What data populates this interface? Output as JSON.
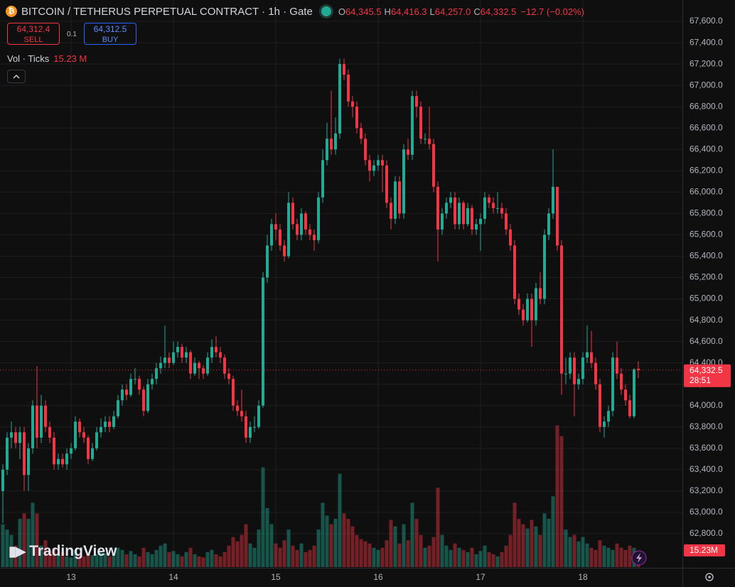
{
  "header": {
    "title": "BITCOIN / TETHERUS PERPETUAL CONTRACT · 1h · Gate",
    "ohlc": [
      {
        "key": "O",
        "value": "64,345.5"
      },
      {
        "key": "H",
        "value": "64,416.3"
      },
      {
        "key": "L",
        "value": "64,257.0"
      },
      {
        "key": "C",
        "value": "64,332.5"
      }
    ],
    "change": "−12.7 (−0.02%)"
  },
  "trade": {
    "sell_price": "64,312.4",
    "sell": "SELL",
    "quantity": "0.1",
    "buy_price": "64,312.5",
    "buy": "BUY"
  },
  "volume_legend": {
    "label": "Vol · Ticks",
    "value": "15.23 M"
  },
  "logo": "TradingView",
  "chart_data": {
    "type": "candlestick",
    "categories": [
      null,
      null,
      null,
      null,
      null,
      null,
      null,
      null,
      null,
      null,
      null,
      null,
      null,
      null,
      null,
      null,
      "13",
      null,
      null,
      null,
      null,
      null,
      null,
      null,
      null,
      null,
      null,
      null,
      null,
      null,
      null,
      null,
      null,
      null,
      null,
      null,
      null,
      null,
      null,
      null,
      "14",
      null,
      null,
      null,
      null,
      null,
      null,
      null,
      null,
      null,
      null,
      null,
      null,
      null,
      null,
      null,
      null,
      null,
      null,
      null,
      null,
      null,
      null,
      null,
      "15",
      null,
      null,
      null,
      null,
      null,
      null,
      null,
      null,
      null,
      null,
      null,
      null,
      null,
      null,
      null,
      null,
      null,
      null,
      null,
      null,
      null,
      null,
      null,
      "16",
      null,
      null,
      null,
      null,
      null,
      null,
      null,
      null,
      null,
      null,
      null,
      null,
      null,
      null,
      null,
      null,
      null,
      null,
      null,
      null,
      null,
      null,
      null,
      "17",
      null,
      null,
      null,
      null,
      null,
      null,
      null,
      null,
      null,
      null,
      null,
      null,
      null,
      null,
      null,
      null,
      null,
      null,
      null,
      null,
      null,
      null,
      null,
      "18",
      null,
      null,
      null,
      null,
      null,
      null,
      null,
      null,
      null,
      null,
      null,
      null,
      null
    ],
    "candles": [
      [
        63200,
        63450,
        62900,
        63400
      ],
      [
        63400,
        63750,
        63350,
        63700
      ],
      [
        63700,
        63850,
        63600,
        63750
      ],
      [
        63750,
        63800,
        63600,
        63650
      ],
      [
        63650,
        63800,
        63500,
        63750
      ],
      [
        63750,
        63800,
        63200,
        63350
      ],
      [
        63350,
        63650,
        63200,
        63600
      ],
      [
        63600,
        64050,
        63550,
        64000
      ],
      [
        64000,
        64370,
        63600,
        63700
      ],
      [
        63700,
        64100,
        63650,
        64000
      ],
      [
        64000,
        64050,
        63750,
        63800
      ],
      [
        63800,
        63850,
        63650,
        63700
      ],
      [
        63700,
        63750,
        63400,
        63450
      ],
      [
        63450,
        63550,
        63400,
        63500
      ],
      [
        63500,
        63550,
        63420,
        63450
      ],
      [
        63450,
        63600,
        63400,
        63550
      ],
      [
        63550,
        63650,
        63500,
        63600
      ],
      [
        63600,
        63900,
        63580,
        63850
      ],
      [
        63850,
        63880,
        63700,
        63750
      ],
      [
        63750,
        63800,
        63650,
        63700
      ],
      [
        63700,
        63720,
        63450,
        63500
      ],
      [
        63500,
        63650,
        63480,
        63600
      ],
      [
        63600,
        63800,
        63580,
        63750
      ],
      [
        63750,
        63880,
        63700,
        63800
      ],
      [
        63800,
        63900,
        63750,
        63850
      ],
      [
        63850,
        63900,
        63750,
        63800
      ],
      [
        63800,
        63950,
        63780,
        63900
      ],
      [
        63900,
        64100,
        63880,
        64050
      ],
      [
        64050,
        64200,
        64000,
        64150
      ],
      [
        64150,
        64200,
        64050,
        64100
      ],
      [
        64100,
        64300,
        64080,
        64250
      ],
      [
        64250,
        64350,
        64200,
        64250
      ],
      [
        64250,
        64280,
        64100,
        64150
      ],
      [
        64150,
        64180,
        63900,
        63950
      ],
      [
        63950,
        64250,
        63930,
        64200
      ],
      [
        64200,
        64300,
        64150,
        64250
      ],
      [
        64250,
        64400,
        64200,
        64350
      ],
      [
        64350,
        64460,
        64300,
        64400
      ],
      [
        64400,
        64750,
        64350,
        64450
      ],
      [
        64450,
        64500,
        64350,
        64400
      ],
      [
        64400,
        64600,
        64380,
        64500
      ],
      [
        64500,
        64600,
        64450,
        64550
      ],
      [
        64550,
        64580,
        64400,
        64450
      ],
      [
        64450,
        64550,
        64400,
        64500
      ],
      [
        64500,
        64520,
        64250,
        64300
      ],
      [
        64300,
        64450,
        64280,
        64400
      ],
      [
        64400,
        64420,
        64250,
        64350
      ],
      [
        64350,
        64380,
        64250,
        64300
      ],
      [
        64300,
        64500,
        64280,
        64450
      ],
      [
        64450,
        64620,
        64400,
        64550
      ],
      [
        64550,
        64650,
        64450,
        64500
      ],
      [
        64500,
        64550,
        64400,
        64450
      ],
      [
        64450,
        64480,
        64250,
        64300
      ],
      [
        64300,
        64350,
        64200,
        64250
      ],
      [
        64250,
        64280,
        63950,
        64000
      ],
      [
        64000,
        64050,
        63900,
        63950
      ],
      [
        63950,
        64150,
        63850,
        63900
      ],
      [
        63900,
        63950,
        63650,
        63700
      ],
      [
        63700,
        63850,
        63650,
        63800
      ],
      [
        63800,
        63900,
        63750,
        63800
      ],
      [
        63800,
        64050,
        63780,
        64000
      ],
      [
        64000,
        65250,
        63980,
        65200
      ],
      [
        65200,
        65600,
        65150,
        65500
      ],
      [
        65500,
        65750,
        65450,
        65700
      ],
      [
        65700,
        65800,
        65550,
        65650
      ],
      [
        65650,
        65700,
        65450,
        65500
      ],
      [
        65500,
        65550,
        65350,
        65400
      ],
      [
        65400,
        66000,
        65380,
        65900
      ],
      [
        65900,
        65950,
        65650,
        65700
      ],
      [
        65700,
        65750,
        65550,
        65600
      ],
      [
        65600,
        65850,
        65550,
        65800
      ],
      [
        65800,
        65820,
        65600,
        65650
      ],
      [
        65650,
        65700,
        65550,
        65600
      ],
      [
        65600,
        65650,
        65450,
        65550
      ],
      [
        65550,
        66000,
        65520,
        65950
      ],
      [
        65950,
        66400,
        65900,
        66300
      ],
      [
        66300,
        66650,
        66250,
        66500
      ],
      [
        66500,
        66950,
        66350,
        66400
      ],
      [
        66400,
        66700,
        66350,
        66550
      ],
      [
        66550,
        67250,
        66500,
        67200
      ],
      [
        67200,
        67250,
        67050,
        67100
      ],
      [
        67100,
        67150,
        66800,
        66850
      ],
      [
        66850,
        66900,
        66700,
        66800
      ],
      [
        66800,
        66850,
        66550,
        66600
      ],
      [
        66600,
        66650,
        66450,
        66500
      ],
      [
        66500,
        66550,
        66250,
        66300
      ],
      [
        66300,
        66350,
        66100,
        66200
      ],
      [
        66200,
        66300,
        66150,
        66250
      ],
      [
        66250,
        66350,
        66200,
        66300
      ],
      [
        66300,
        66350,
        66000,
        66250
      ],
      [
        66250,
        66300,
        65850,
        65900
      ],
      [
        65900,
        65950,
        65650,
        65750
      ],
      [
        65750,
        66150,
        65700,
        66100
      ],
      [
        66100,
        66150,
        65750,
        65800
      ],
      [
        65800,
        66450,
        65750,
        66400
      ],
      [
        66400,
        66500,
        66300,
        66350
      ],
      [
        66350,
        66950,
        66300,
        66900
      ],
      [
        66900,
        66950,
        66700,
        66800
      ],
      [
        66800,
        66850,
        66450,
        66500
      ],
      [
        66500,
        66550,
        66450,
        66500
      ],
      [
        66500,
        66800,
        66400,
        66450
      ],
      [
        66450,
        66500,
        66000,
        66050
      ],
      [
        66050,
        66100,
        65350,
        65650
      ],
      [
        65650,
        65850,
        65600,
        65800
      ],
      [
        65800,
        65950,
        65750,
        65900
      ],
      [
        65900,
        66000,
        65850,
        65950
      ],
      [
        65950,
        66000,
        65650,
        65700
      ],
      [
        65700,
        65950,
        65650,
        65900
      ],
      [
        65900,
        65920,
        65650,
        65700
      ],
      [
        65700,
        65900,
        65680,
        65850
      ],
      [
        65850,
        65880,
        65600,
        65650
      ],
      [
        65650,
        65750,
        65600,
        65700
      ],
      [
        65700,
        65800,
        65450,
        65750
      ],
      [
        65750,
        66000,
        65700,
        65950
      ],
      [
        65950,
        65980,
        65850,
        65900
      ],
      [
        65900,
        65950,
        65800,
        65850
      ],
      [
        65850,
        66000,
        65800,
        65850
      ],
      [
        65850,
        65900,
        65750,
        65800
      ],
      [
        65800,
        65850,
        65600,
        65650
      ],
      [
        65650,
        65700,
        65450,
        65500
      ],
      [
        65500,
        65550,
        64950,
        65000
      ],
      [
        65000,
        65050,
        64850,
        64900
      ],
      [
        64900,
        64950,
        64750,
        64800
      ],
      [
        64800,
        65050,
        64780,
        65000
      ],
      [
        65000,
        65050,
        64550,
        64800
      ],
      [
        64800,
        65150,
        64750,
        65100
      ],
      [
        65100,
        65250,
        64950,
        65000
      ],
      [
        65000,
        65650,
        64950,
        65600
      ],
      [
        65600,
        65850,
        65550,
        65800
      ],
      [
        65800,
        66400,
        65750,
        66050
      ],
      [
        66050,
        66050,
        65450,
        65500
      ],
      [
        65500,
        65550,
        64100,
        64300
      ],
      [
        64300,
        64450,
        64200,
        64300
      ],
      [
        64300,
        64500,
        64250,
        64450
      ],
      [
        64450,
        64500,
        63900,
        64200
      ],
      [
        64200,
        64300,
        64150,
        64250
      ],
      [
        64250,
        64500,
        64200,
        64450
      ],
      [
        64450,
        64750,
        64400,
        64500
      ],
      [
        64500,
        64700,
        64350,
        64400
      ],
      [
        64400,
        64450,
        64150,
        64200
      ],
      [
        64200,
        64250,
        63750,
        63800
      ],
      [
        63800,
        63900,
        63700,
        63850
      ],
      [
        63850,
        64000,
        63800,
        63950
      ],
      [
        63950,
        64500,
        63900,
        64450
      ],
      [
        64450,
        64600,
        64250,
        64300
      ],
      [
        64300,
        64350,
        64100,
        64150
      ],
      [
        64150,
        64200,
        64000,
        64050
      ],
      [
        64050,
        64100,
        63880,
        63900
      ],
      [
        63900,
        64350,
        63880,
        64340
      ],
      [
        64345.5,
        64416.3,
        64257.0,
        64332.5
      ]
    ],
    "volume": [
      40,
      35,
      30,
      20,
      45,
      50,
      45,
      60,
      50,
      20,
      25,
      15,
      18,
      12,
      14,
      10,
      9,
      16,
      12,
      10,
      14,
      11,
      12,
      15,
      13,
      10,
      14,
      18,
      16,
      12,
      15,
      12,
      10,
      18,
      14,
      12,
      16,
      20,
      22,
      14,
      15,
      12,
      10,
      14,
      18,
      12,
      10,
      9,
      14,
      16,
      12,
      10,
      14,
      20,
      28,
      24,
      30,
      40,
      22,
      18,
      35,
      93,
      55,
      40,
      22,
      18,
      25,
      35,
      20,
      16,
      22,
      14,
      16,
      20,
      35,
      60,
      48,
      40,
      45,
      87,
      50,
      45,
      38,
      30,
      26,
      24,
      22,
      18,
      16,
      18,
      25,
      44,
      38,
      22,
      40,
      25,
      60,
      45,
      30,
      18,
      20,
      28,
      74,
      30,
      20,
      16,
      22,
      18,
      16,
      14,
      18,
      12,
      15,
      20,
      14,
      12,
      10,
      14,
      20,
      30,
      60,
      45,
      40,
      36,
      44,
      38,
      30,
      50,
      45,
      66,
      132,
      122,
      35,
      28,
      30,
      24,
      28,
      22,
      18,
      16,
      25,
      20,
      18,
      16,
      22,
      18,
      16,
      20,
      18,
      15.23
    ],
    "ylim": [
      62487,
      67800
    ],
    "yticks": [
      {
        "value": 62800,
        "label": "62,800.0"
      },
      {
        "value": 63000,
        "label": "63,000.0"
      },
      {
        "value": 63200,
        "label": "63,200.0"
      },
      {
        "value": 63400,
        "label": "63,400.0"
      },
      {
        "value": 63600,
        "label": "63,600.0"
      },
      {
        "value": 63800,
        "label": "63,800.0"
      },
      {
        "value": 64000,
        "label": "64,000.0"
      },
      {
        "value": 64200,
        "label": "64,200.0"
      },
      {
        "value": 64400,
        "label": "64,400.0"
      },
      {
        "value": 64600,
        "label": "64,600.0"
      },
      {
        "value": 64800,
        "label": "64,800.0"
      },
      {
        "value": 65000,
        "label": "65,000.0"
      },
      {
        "value": 65200,
        "label": "65,200.0"
      },
      {
        "value": 65400,
        "label": "65,400.0"
      },
      {
        "value": 65600,
        "label": "65,600.0"
      },
      {
        "value": 65800,
        "label": "65,800.0"
      },
      {
        "value": 66000,
        "label": "66,000.0"
      },
      {
        "value": 66200,
        "label": "66,200.0"
      },
      {
        "value": 66400,
        "label": "66,400.0"
      },
      {
        "value": 66600,
        "label": "66,600.0"
      },
      {
        "value": 66800,
        "label": "66,800.0"
      },
      {
        "value": 67000,
        "label": "67,000.0"
      },
      {
        "value": 67200,
        "label": "67,200.0"
      },
      {
        "value": 67400,
        "label": "67,400.0"
      },
      {
        "value": 67600,
        "label": "67,600.0"
      }
    ],
    "last_price": {
      "value": 64332.5,
      "label": "64,332.5",
      "countdown": "28:51"
    },
    "last_volume_label": "15.23M",
    "up_color": "#22ab94",
    "down_color": "#f23645",
    "grid": true
  }
}
